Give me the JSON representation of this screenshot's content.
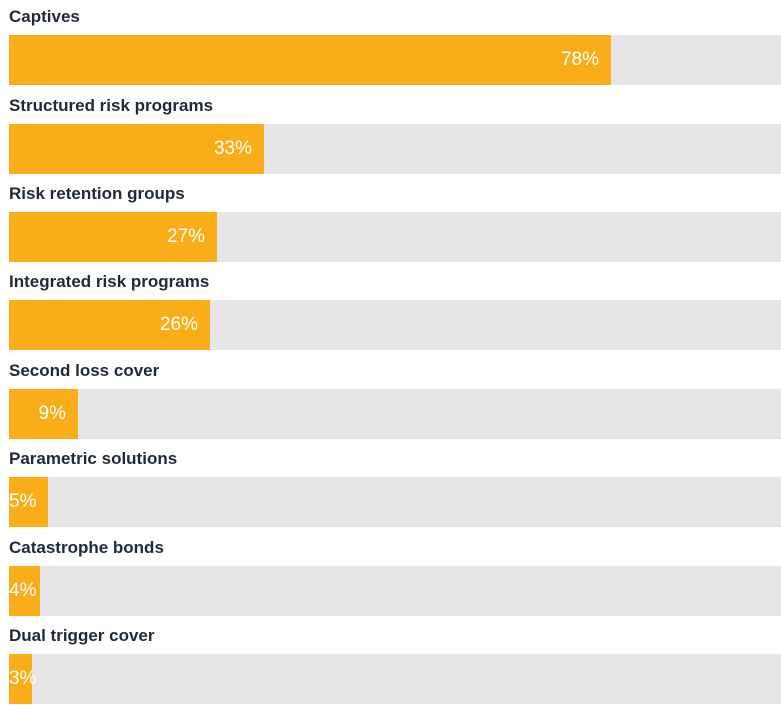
{
  "chart_data": {
    "type": "bar",
    "orientation": "horizontal",
    "xlim": [
      0,
      100
    ],
    "value_suffix": "%",
    "categories": [
      "Captives",
      "Structured risk programs",
      "Risk retention groups",
      "Integrated risk programs",
      "Second loss cover",
      "Parametric solutions",
      "Catastrophe bonds",
      "Dual trigger cover"
    ],
    "values": [
      78,
      33,
      27,
      26,
      9,
      5,
      4,
      3
    ],
    "value_labels": [
      "78%",
      "33%",
      "27%",
      "26%",
      "9%",
      "5%",
      "4%",
      "3%"
    ],
    "grid": false,
    "legend": "none"
  },
  "colors": {
    "bar": "#f9ae19",
    "track": "#e6e6e8",
    "label_text": "#1f2a36",
    "value_text": "#ffffff"
  }
}
